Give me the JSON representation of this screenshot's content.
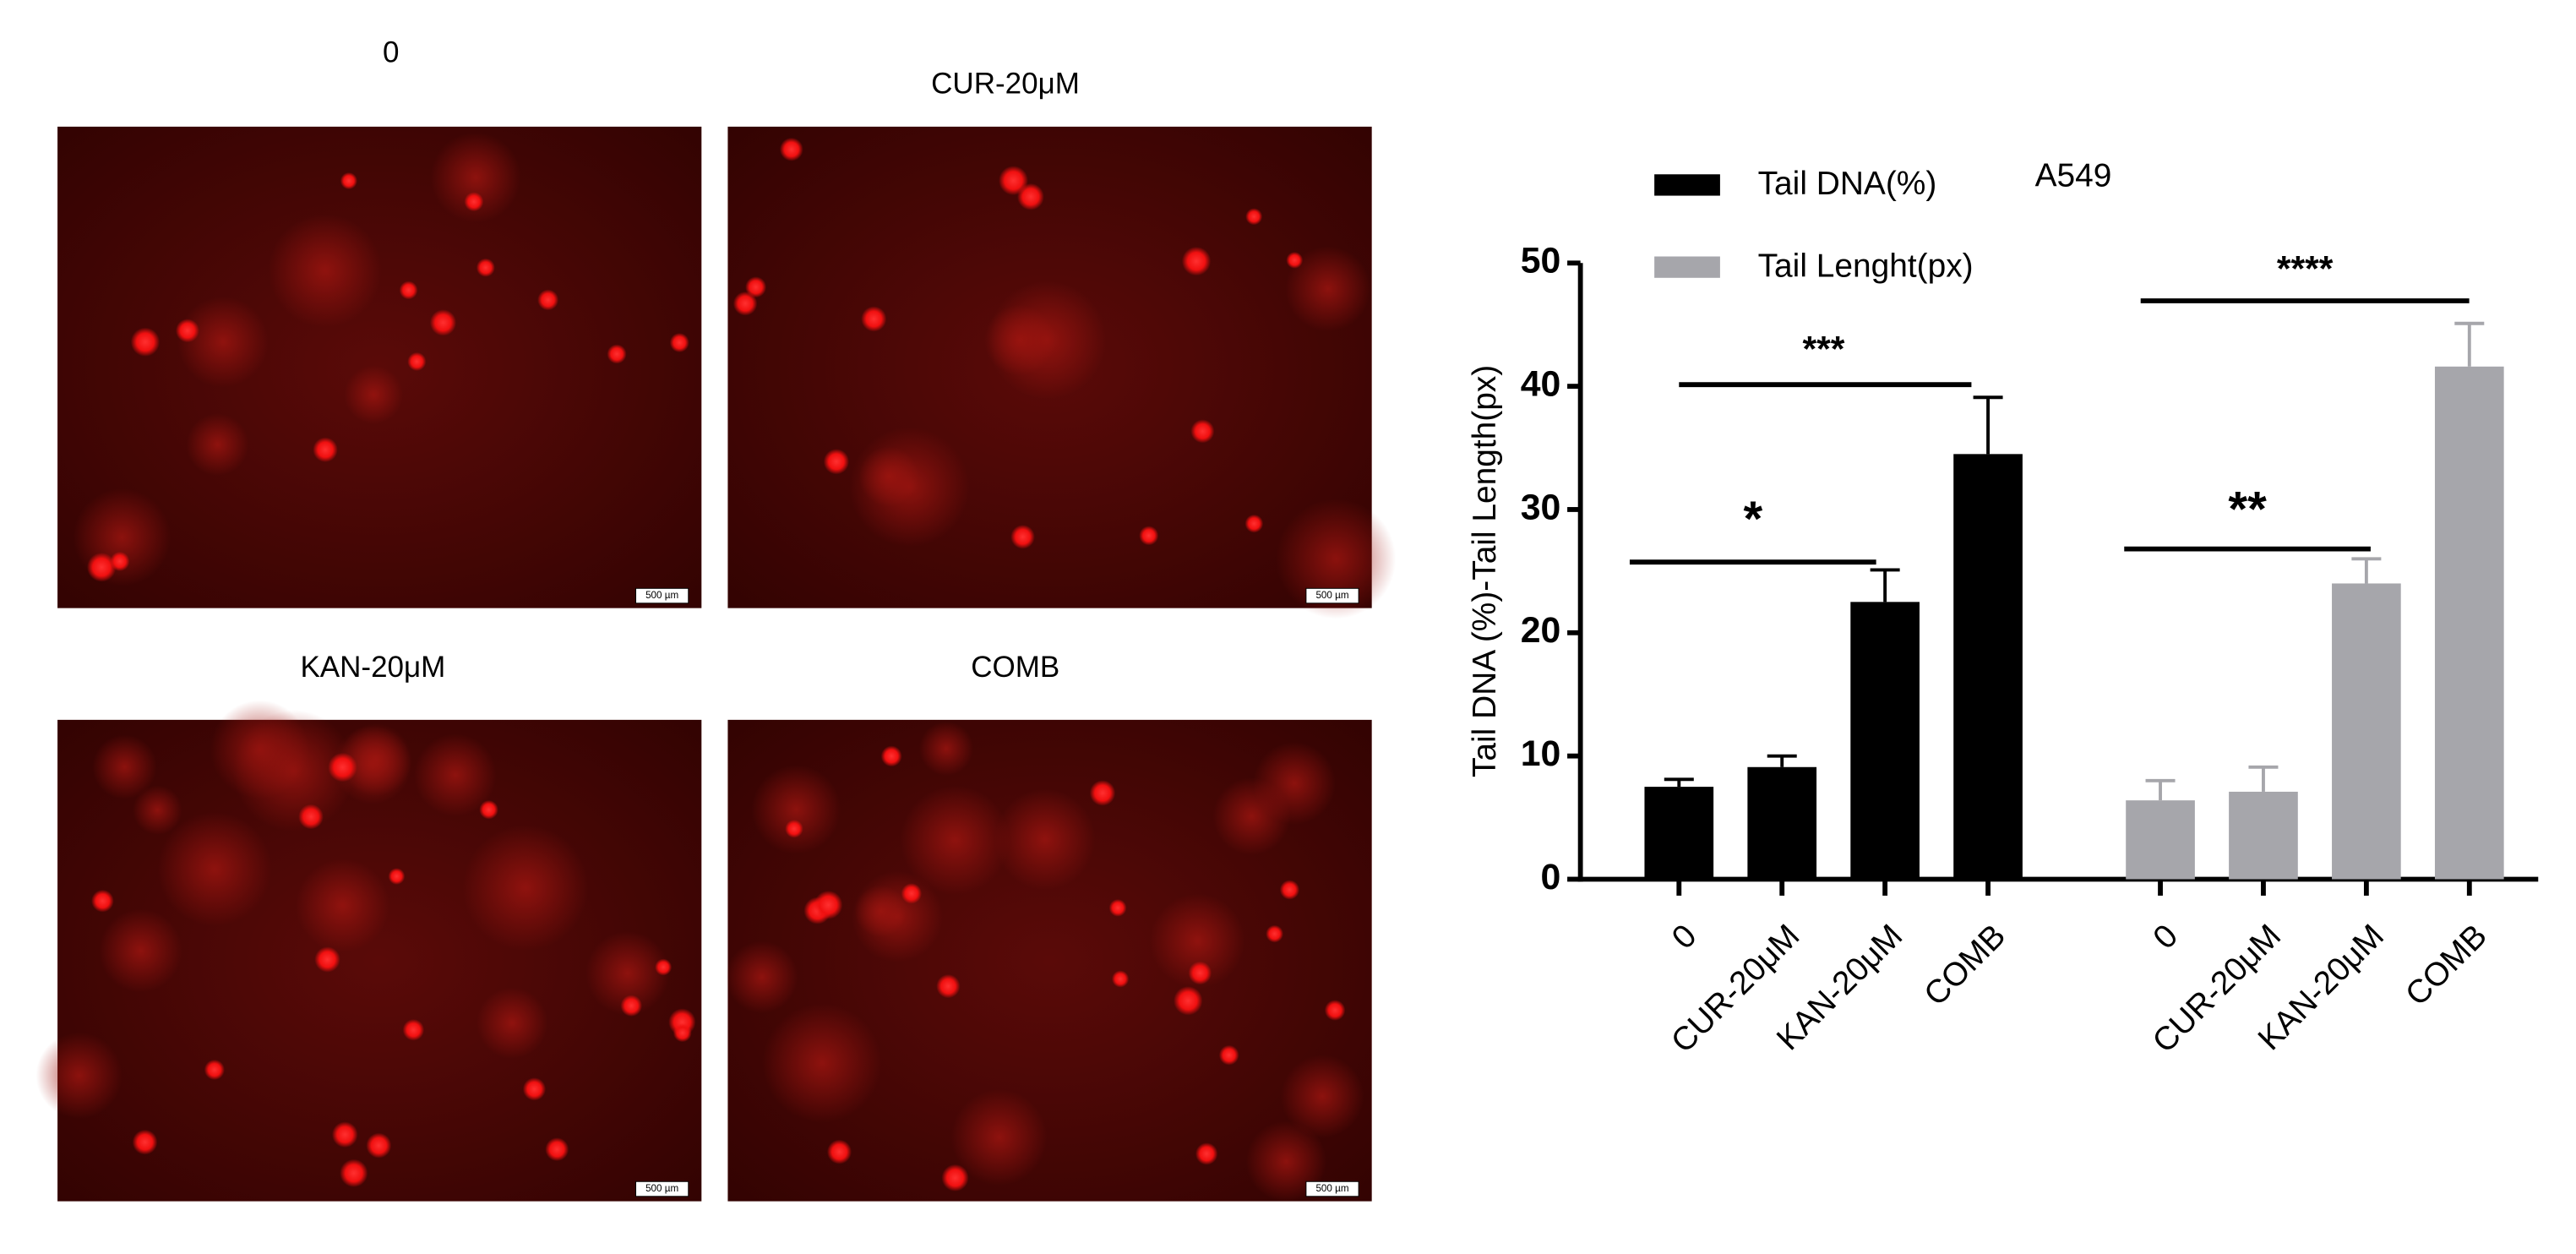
{
  "panels": [
    {
      "title": "0",
      "scale_label": "500 µm"
    },
    {
      "title": "CUR-20μM",
      "scale_label": "500 µm"
    },
    {
      "title": "KAN-20μM",
      "scale_label": "500 µm"
    },
    {
      "title": "COMB",
      "scale_label": "500 µm"
    }
  ],
  "chart_data": {
    "type": "bar",
    "title": "A549",
    "y_label": "Tail DNA (%)-Tail Length(px)",
    "categories": [
      "0",
      "CUR-20μM",
      "KAN-20μM",
      "COMB"
    ],
    "series": [
      {
        "name": "Tail DNA(%)",
        "color": "#000000",
        "values": [
          7.5,
          9.1,
          22.5,
          34.5
        ],
        "errors": [
          0.6,
          0.9,
          2.6,
          4.6
        ]
      },
      {
        "name": "Tail Lenght(px)",
        "color": "#a6a6ab",
        "values": [
          6.4,
          7.1,
          24,
          41.6
        ],
        "errors": [
          1.6,
          2,
          2,
          3.5
        ]
      }
    ],
    "annotations": [
      "*",
      "***",
      "**",
      "****"
    ],
    "ylim": [
      0,
      50
    ],
    "yticks": [
      0,
      10,
      20,
      30,
      40,
      50
    ],
    "legend": "top-left"
  }
}
